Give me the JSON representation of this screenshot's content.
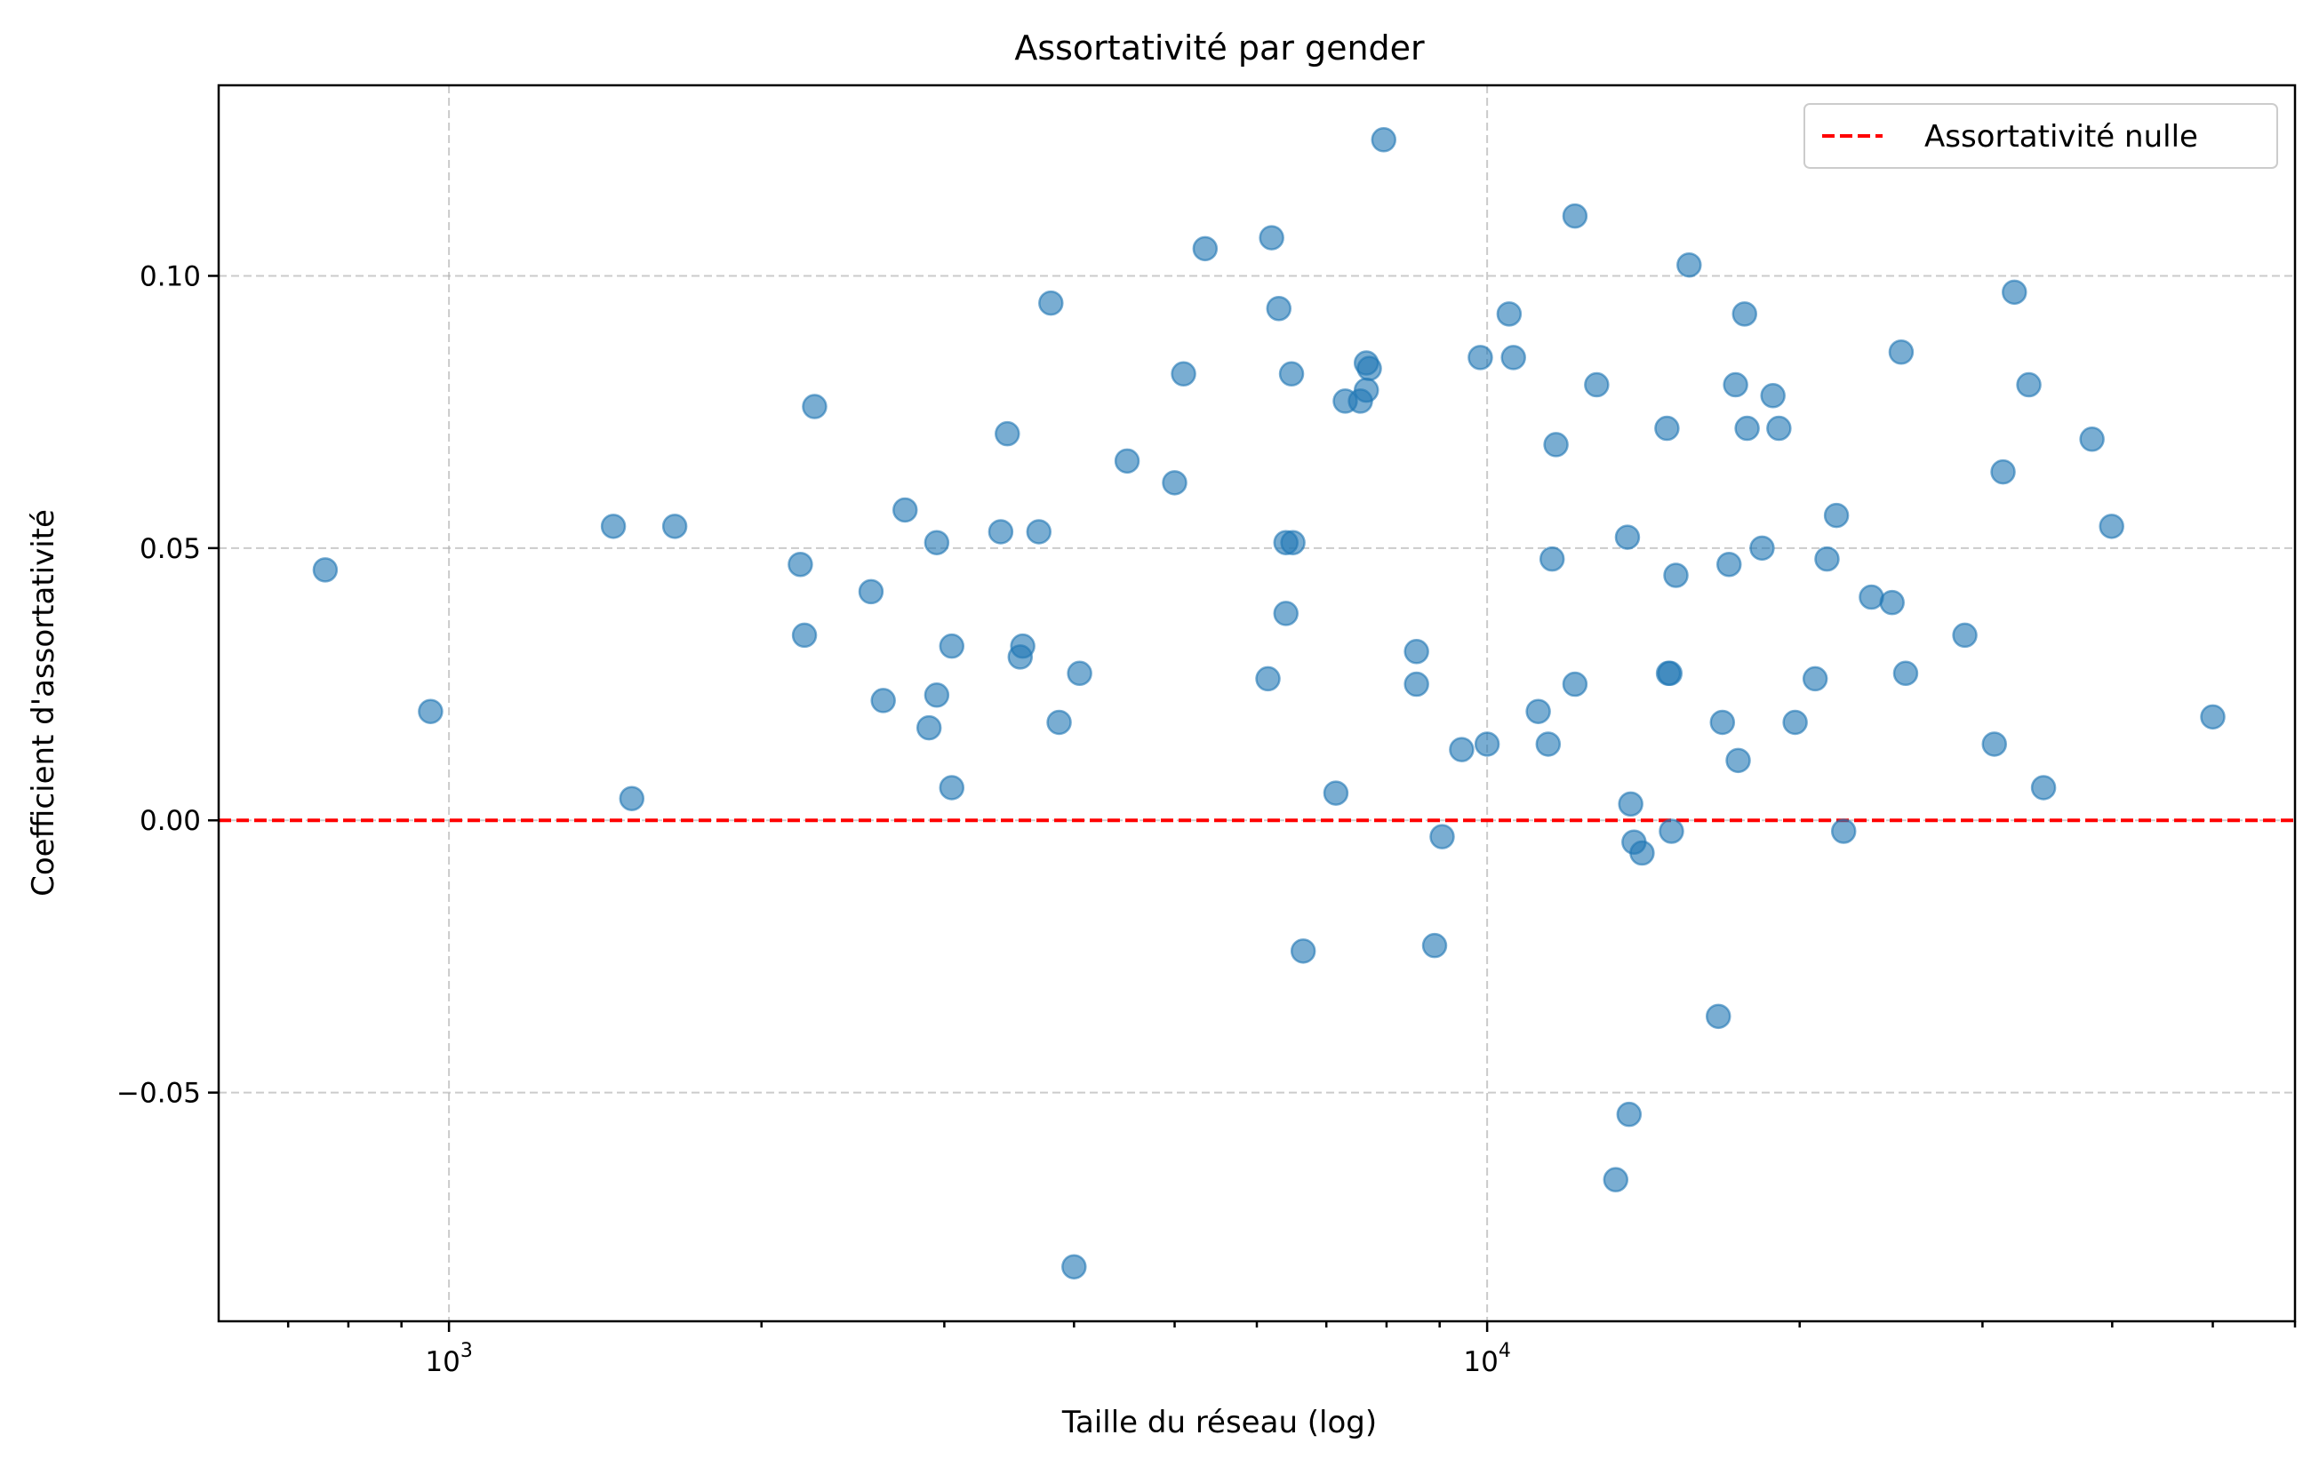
{
  "chart_data": {
    "type": "scatter",
    "title": "Assortativité par gender",
    "xlabel": "Taille du réseau (log)",
    "ylabel": "Coefficient d'assortativité",
    "xscale": "log",
    "xlim": [
      600,
      60000
    ],
    "ylim": [
      -0.092,
      0.135
    ],
    "grid": true,
    "x_major_ticks": [
      {
        "value": 1000,
        "base": "10",
        "exp": "3"
      },
      {
        "value": 10000,
        "base": "10",
        "exp": "4"
      }
    ],
    "x_minor_ticks": [
      700,
      800,
      900,
      2000,
      3000,
      4000,
      5000,
      6000,
      7000,
      8000,
      9000,
      20000,
      30000,
      40000,
      50000,
      60000
    ],
    "y_ticks": [
      {
        "value": -0.05,
        "label": "−0.05"
      },
      {
        "value": 0.0,
        "label": "0.00"
      },
      {
        "value": 0.05,
        "label": "0.05"
      },
      {
        "value": 0.1,
        "label": "0.10"
      }
    ],
    "reference_line": {
      "y": 0,
      "label": "Assortativité nulle",
      "color": "#ff0000",
      "style": "dashed"
    },
    "legend": {
      "position": "top-right",
      "entries": [
        "Assortativité nulle"
      ]
    },
    "marker_color": "#1f77b4",
    "marker_alpha": 0.6,
    "points": [
      [
        760,
        0.046
      ],
      [
        960,
        0.02
      ],
      [
        1440,
        0.054
      ],
      [
        1500,
        0.004
      ],
      [
        1650,
        0.054
      ],
      [
        2180,
        0.047
      ],
      [
        2200,
        0.034
      ],
      [
        2250,
        0.076
      ],
      [
        2550,
        0.042
      ],
      [
        2620,
        0.022
      ],
      [
        2750,
        0.057
      ],
      [
        2900,
        0.017
      ],
      [
        2950,
        0.051
      ],
      [
        2950,
        0.023
      ],
      [
        3050,
        0.032
      ],
      [
        3050,
        0.006
      ],
      [
        3400,
        0.053
      ],
      [
        3450,
        0.071
      ],
      [
        3550,
        0.03
      ],
      [
        3570,
        0.032
      ],
      [
        3700,
        0.053
      ],
      [
        3800,
        0.095
      ],
      [
        3870,
        0.018
      ],
      [
        4000,
        -0.082
      ],
      [
        4050,
        0.027
      ],
      [
        4500,
        0.066
      ],
      [
        5000,
        0.062
      ],
      [
        5100,
        0.082
      ],
      [
        5350,
        0.105
      ],
      [
        6150,
        0.026
      ],
      [
        6200,
        0.107
      ],
      [
        6300,
        0.094
      ],
      [
        6400,
        0.038
      ],
      [
        6400,
        0.051
      ],
      [
        6480,
        0.082
      ],
      [
        6500,
        0.051
      ],
      [
        6650,
        -0.024
      ],
      [
        7150,
        0.005
      ],
      [
        7300,
        0.077
      ],
      [
        7550,
        0.077
      ],
      [
        7650,
        0.084
      ],
      [
        7650,
        0.079
      ],
      [
        7700,
        0.083
      ],
      [
        7950,
        0.125
      ],
      [
        8550,
        0.031
      ],
      [
        8550,
        0.025
      ],
      [
        8900,
        -0.023
      ],
      [
        9050,
        -0.003
      ],
      [
        9450,
        0.013
      ],
      [
        9850,
        0.085
      ],
      [
        10000,
        0.014
      ],
      [
        10500,
        0.093
      ],
      [
        10600,
        0.085
      ],
      [
        11200,
        0.02
      ],
      [
        11450,
        0.014
      ],
      [
        11550,
        0.048
      ],
      [
        11650,
        0.069
      ],
      [
        12150,
        0.111
      ],
      [
        12150,
        0.025
      ],
      [
        12750,
        0.08
      ],
      [
        13300,
        -0.066
      ],
      [
        13650,
        0.052
      ],
      [
        13700,
        -0.054
      ],
      [
        13750,
        0.003
      ],
      [
        13850,
        -0.004
      ],
      [
        14100,
        -0.006
      ],
      [
        14900,
        0.072
      ],
      [
        14950,
        0.027
      ],
      [
        15000,
        0.027
      ],
      [
        15050,
        -0.002
      ],
      [
        15200,
        0.045
      ],
      [
        15650,
        0.102
      ],
      [
        16700,
        -0.036
      ],
      [
        16850,
        0.018
      ],
      [
        17100,
        0.047
      ],
      [
        17350,
        0.08
      ],
      [
        17450,
        0.011
      ],
      [
        17700,
        0.093
      ],
      [
        17800,
        0.072
      ],
      [
        18400,
        0.05
      ],
      [
        18850,
        0.078
      ],
      [
        19100,
        0.072
      ],
      [
        19800,
        0.018
      ],
      [
        20700,
        0.026
      ],
      [
        21250,
        0.048
      ],
      [
        21700,
        0.056
      ],
      [
        22050,
        -0.002
      ],
      [
        23450,
        0.041
      ],
      [
        24550,
        0.04
      ],
      [
        25050,
        0.086
      ],
      [
        25300,
        0.027
      ],
      [
        28850,
        0.034
      ],
      [
        30800,
        0.014
      ],
      [
        31400,
        0.064
      ],
      [
        32200,
        0.097
      ],
      [
        33250,
        0.08
      ],
      [
        34350,
        0.006
      ],
      [
        38250,
        0.07
      ],
      [
        39950,
        0.054
      ],
      [
        50000,
        0.019
      ]
    ]
  }
}
